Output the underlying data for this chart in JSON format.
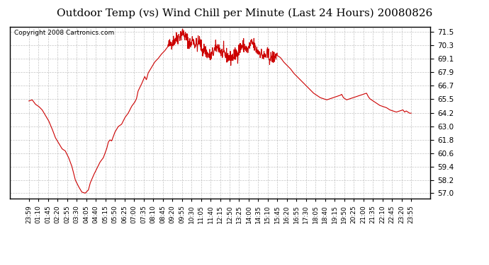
{
  "title": "Outdoor Temp (vs) Wind Chill per Minute (Last 24 Hours) 20080826",
  "copyright": "Copyright 2008 Cartronics.com",
  "line_color": "#cc0000",
  "background_color": "#ffffff",
  "plot_bg_color": "#ffffff",
  "grid_color": "#aaaaaa",
  "yticks": [
    57.0,
    58.2,
    59.4,
    60.6,
    61.8,
    63.0,
    64.2,
    65.5,
    66.7,
    67.9,
    69.1,
    70.3,
    71.5
  ],
  "ylim": [
    56.5,
    72.0
  ],
  "xtick_labels": [
    "23:59",
    "01:10",
    "01:45",
    "02:20",
    "02:55",
    "03:30",
    "04:05",
    "04:40",
    "05:15",
    "05:50",
    "06:25",
    "07:00",
    "07:35",
    "08:10",
    "08:45",
    "09:20",
    "09:55",
    "10:30",
    "11:05",
    "11:40",
    "12:15",
    "12:50",
    "13:25",
    "14:00",
    "14:35",
    "15:10",
    "15:45",
    "16:20",
    "16:55",
    "17:30",
    "18:05",
    "18:40",
    "19:15",
    "19:50",
    "20:25",
    "21:00",
    "21:35",
    "22:10",
    "22:45",
    "23:20",
    "23:55"
  ],
  "curve_key_points": [
    [
      0,
      65.3
    ],
    [
      10,
      65.4
    ],
    [
      20,
      65.0
    ],
    [
      30,
      64.8
    ],
    [
      40,
      64.5
    ],
    [
      50,
      64.0
    ],
    [
      60,
      63.5
    ],
    [
      70,
      62.8
    ],
    [
      80,
      62.0
    ],
    [
      90,
      61.5
    ],
    [
      100,
      61.0
    ],
    [
      110,
      60.8
    ],
    [
      120,
      60.2
    ],
    [
      130,
      59.4
    ],
    [
      140,
      58.2
    ],
    [
      150,
      57.6
    ],
    [
      160,
      57.1
    ],
    [
      170,
      57.0
    ],
    [
      180,
      57.3
    ],
    [
      185,
      57.9
    ],
    [
      195,
      58.6
    ],
    [
      205,
      59.2
    ],
    [
      215,
      59.8
    ],
    [
      225,
      60.2
    ],
    [
      235,
      61.0
    ],
    [
      240,
      61.6
    ],
    [
      245,
      61.8
    ],
    [
      250,
      61.7
    ],
    [
      260,
      62.5
    ],
    [
      270,
      63.0
    ],
    [
      280,
      63.2
    ],
    [
      290,
      63.8
    ],
    [
      300,
      64.2
    ],
    [
      310,
      64.8
    ],
    [
      320,
      65.2
    ],
    [
      325,
      65.5
    ],
    [
      330,
      66.2
    ],
    [
      340,
      66.8
    ],
    [
      350,
      67.5
    ],
    [
      355,
      67.2
    ],
    [
      360,
      67.8
    ],
    [
      370,
      68.3
    ],
    [
      380,
      68.8
    ],
    [
      390,
      69.1
    ],
    [
      400,
      69.5
    ],
    [
      410,
      69.8
    ],
    [
      420,
      70.2
    ],
    [
      430,
      70.5
    ],
    [
      440,
      70.8
    ],
    [
      450,
      71.0
    ],
    [
      460,
      71.3
    ],
    [
      465,
      71.5
    ],
    [
      470,
      71.2
    ],
    [
      480,
      70.8
    ],
    [
      490,
      70.3
    ],
    [
      495,
      71.0
    ],
    [
      500,
      70.5
    ],
    [
      510,
      70.3
    ],
    [
      515,
      70.8
    ],
    [
      520,
      70.2
    ],
    [
      525,
      69.8
    ],
    [
      530,
      70.0
    ],
    [
      540,
      69.5
    ],
    [
      550,
      69.3
    ],
    [
      560,
      69.8
    ],
    [
      570,
      70.2
    ],
    [
      575,
      70.1
    ],
    [
      580,
      69.7
    ],
    [
      590,
      69.5
    ],
    [
      600,
      69.3
    ],
    [
      610,
      69.1
    ],
    [
      620,
      69.4
    ],
    [
      630,
      69.6
    ],
    [
      640,
      70.2
    ],
    [
      650,
      70.3
    ],
    [
      655,
      70.0
    ],
    [
      660,
      69.8
    ],
    [
      665,
      70.1
    ],
    [
      670,
      70.4
    ],
    [
      675,
      70.5
    ],
    [
      680,
      70.3
    ],
    [
      685,
      70.0
    ],
    [
      690,
      69.8
    ],
    [
      700,
      69.6
    ],
    [
      710,
      69.3
    ],
    [
      720,
      69.5
    ],
    [
      730,
      69.1
    ],
    [
      740,
      69.3
    ],
    [
      750,
      69.4
    ],
    [
      760,
      69.2
    ],
    [
      770,
      68.8
    ],
    [
      780,
      68.5
    ],
    [
      790,
      68.2
    ],
    [
      800,
      67.8
    ],
    [
      810,
      67.5
    ],
    [
      820,
      67.2
    ],
    [
      830,
      66.9
    ],
    [
      840,
      66.6
    ],
    [
      850,
      66.3
    ],
    [
      860,
      66.0
    ],
    [
      870,
      65.8
    ],
    [
      880,
      65.6
    ],
    [
      890,
      65.5
    ],
    [
      900,
      65.4
    ],
    [
      910,
      65.5
    ],
    [
      920,
      65.6
    ],
    [
      930,
      65.7
    ],
    [
      940,
      65.8
    ],
    [
      945,
      65.9
    ],
    [
      950,
      65.6
    ],
    [
      960,
      65.4
    ],
    [
      970,
      65.5
    ],
    [
      980,
      65.6
    ],
    [
      990,
      65.7
    ],
    [
      1000,
      65.8
    ],
    [
      1010,
      65.9
    ],
    [
      1020,
      66.0
    ],
    [
      1025,
      65.7
    ],
    [
      1030,
      65.5
    ],
    [
      1040,
      65.3
    ],
    [
      1050,
      65.1
    ],
    [
      1060,
      64.9
    ],
    [
      1070,
      64.8
    ],
    [
      1080,
      64.7
    ],
    [
      1090,
      64.5
    ],
    [
      1100,
      64.4
    ],
    [
      1110,
      64.3
    ],
    [
      1120,
      64.4
    ],
    [
      1130,
      64.5
    ],
    [
      1135,
      64.3
    ],
    [
      1140,
      64.4
    ],
    [
      1150,
      64.2
    ],
    [
      1155,
      64.2
    ]
  ]
}
